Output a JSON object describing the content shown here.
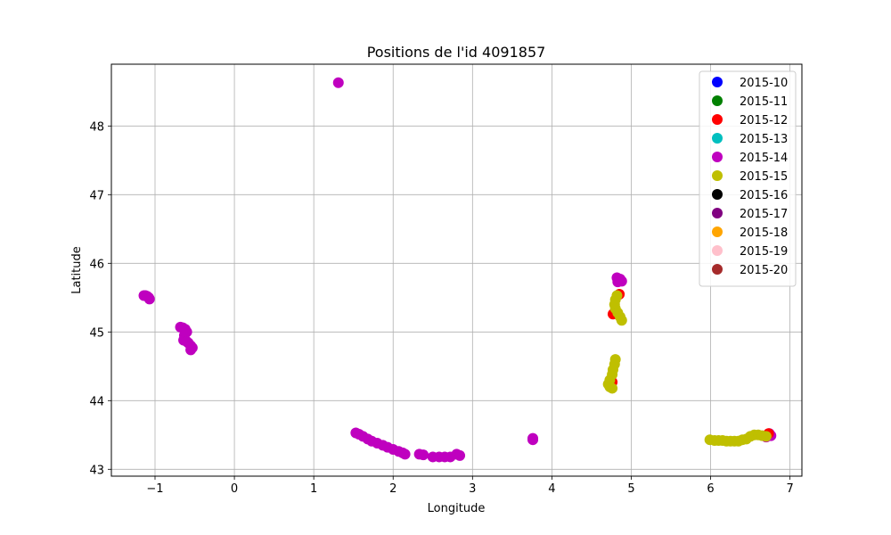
{
  "chart_data": {
    "type": "scatter",
    "title": "Positions de l'id 4091857",
    "xlabel": "Longitude",
    "ylabel": "Latitude",
    "xlim": [
      -1.55,
      7.15
    ],
    "ylim": [
      42.9,
      48.9
    ],
    "xticks": [
      -1,
      0,
      1,
      2,
      3,
      4,
      5,
      6,
      7
    ],
    "yticks": [
      43,
      44,
      45,
      46,
      47,
      48
    ],
    "grid": true,
    "legend_position": "top-right",
    "series": [
      {
        "name": "2015-10",
        "color": "#0000ff",
        "points": []
      },
      {
        "name": "2015-11",
        "color": "#008000",
        "points": []
      },
      {
        "name": "2015-12",
        "color": "#ff0000",
        "points": [
          [
            4.85,
            45.55
          ],
          [
            4.77,
            45.26
          ],
          [
            4.76,
            44.27
          ],
          [
            6.73,
            43.52
          ]
        ]
      },
      {
        "name": "2015-13",
        "color": "#00bfbf",
        "points": []
      },
      {
        "name": "2015-14",
        "color": "#bf00bf",
        "points": [
          [
            1.31,
            48.63
          ],
          [
            -1.14,
            45.53
          ],
          [
            -1.12,
            45.53
          ],
          [
            -1.1,
            45.52
          ],
          [
            -1.08,
            45.5
          ],
          [
            -1.07,
            45.48
          ],
          [
            -0.68,
            45.07
          ],
          [
            -0.65,
            45.06
          ],
          [
            -0.62,
            45.04
          ],
          [
            -0.6,
            45.0
          ],
          [
            -0.63,
            44.95
          ],
          [
            -0.64,
            44.88
          ],
          [
            -0.6,
            44.86
          ],
          [
            -0.58,
            44.84
          ],
          [
            -0.55,
            44.8
          ],
          [
            -0.53,
            44.77
          ],
          [
            -0.55,
            44.74
          ],
          [
            1.53,
            43.53
          ],
          [
            1.57,
            43.51
          ],
          [
            1.62,
            43.48
          ],
          [
            1.68,
            43.44
          ],
          [
            1.73,
            43.41
          ],
          [
            1.8,
            43.38
          ],
          [
            1.87,
            43.35
          ],
          [
            1.93,
            43.32
          ],
          [
            2.0,
            43.29
          ],
          [
            2.07,
            43.26
          ],
          [
            2.12,
            43.24
          ],
          [
            2.15,
            43.22
          ],
          [
            2.33,
            43.22
          ],
          [
            2.38,
            43.21
          ],
          [
            2.5,
            43.18
          ],
          [
            2.58,
            43.18
          ],
          [
            2.65,
            43.18
          ],
          [
            2.72,
            43.18
          ],
          [
            2.8,
            43.22
          ],
          [
            2.84,
            43.2
          ],
          [
            3.76,
            43.43
          ],
          [
            3.76,
            43.45
          ],
          [
            4.82,
            45.79
          ],
          [
            4.86,
            45.77
          ],
          [
            4.88,
            45.74
          ],
          [
            4.83,
            45.73
          ],
          [
            6.74,
            43.52
          ],
          [
            6.7,
            43.47
          ],
          [
            6.76,
            43.49
          ]
        ]
      },
      {
        "name": "2015-15",
        "color": "#bfbf00",
        "points": [
          [
            4.82,
            45.53
          ],
          [
            4.8,
            45.47
          ],
          [
            4.79,
            45.4
          ],
          [
            4.8,
            45.34
          ],
          [
            4.83,
            45.28
          ],
          [
            4.86,
            45.22
          ],
          [
            4.88,
            45.17
          ],
          [
            4.8,
            44.6
          ],
          [
            4.79,
            44.53
          ],
          [
            4.77,
            44.45
          ],
          [
            4.76,
            44.38
          ],
          [
            4.73,
            44.3
          ],
          [
            4.71,
            44.24
          ],
          [
            4.73,
            44.2
          ],
          [
            4.76,
            44.18
          ],
          [
            5.99,
            43.43
          ],
          [
            6.05,
            43.42
          ],
          [
            6.1,
            43.42
          ],
          [
            6.15,
            43.42
          ],
          [
            6.2,
            43.41
          ],
          [
            6.25,
            43.41
          ],
          [
            6.3,
            43.41
          ],
          [
            6.35,
            43.41
          ],
          [
            6.4,
            43.43
          ],
          [
            6.45,
            43.44
          ],
          [
            6.5,
            43.48
          ],
          [
            6.55,
            43.5
          ],
          [
            6.6,
            43.5
          ],
          [
            6.65,
            43.49
          ],
          [
            6.7,
            43.48
          ]
        ]
      },
      {
        "name": "2015-16",
        "color": "#000000",
        "points": []
      },
      {
        "name": "2015-17",
        "color": "#800080",
        "points": []
      },
      {
        "name": "2015-18",
        "color": "#ffa500",
        "points": []
      },
      {
        "name": "2015-19",
        "color": "#ffc0cb",
        "points": []
      },
      {
        "name": "2015-20",
        "color": "#a52a2a",
        "points": []
      }
    ]
  }
}
